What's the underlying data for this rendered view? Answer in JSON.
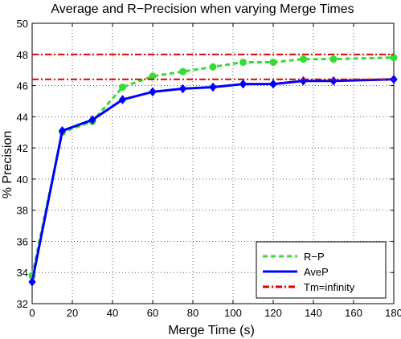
{
  "chart_data": {
    "type": "line",
    "title": "Average and R−Precision when varying Merge Times",
    "xlabel": "Merge Time (s)",
    "ylabel": "% Precision",
    "xlim": [
      0,
      180
    ],
    "ylim": [
      32,
      50
    ],
    "xticks": [
      0,
      20,
      40,
      60,
      80,
      100,
      120,
      140,
      160,
      180
    ],
    "yticks": [
      32,
      34,
      36,
      38,
      40,
      42,
      44,
      46,
      48,
      50
    ],
    "grid": true,
    "legend_position": "bottom-right",
    "x": [
      0,
      15,
      30,
      45,
      60,
      75,
      90,
      105,
      120,
      135,
      150,
      180
    ],
    "series": [
      {
        "name": "R−P",
        "style": "dashed",
        "marker": "circle",
        "color": "#33dd33",
        "values": [
          33.8,
          43.0,
          43.7,
          45.9,
          46.6,
          46.9,
          47.2,
          47.5,
          47.5,
          47.7,
          47.7,
          47.8
        ]
      },
      {
        "name": "AveP",
        "style": "solid",
        "marker": "diamond",
        "color": "#0000ff",
        "values": [
          33.4,
          43.1,
          43.8,
          45.1,
          45.6,
          45.8,
          45.9,
          46.1,
          46.1,
          46.3,
          46.3,
          46.4
        ]
      },
      {
        "name": "Tm=infinity",
        "style": "dashdot",
        "marker": "none",
        "color": "#dd0000",
        "hlines": [
          48.0,
          46.4
        ]
      }
    ]
  }
}
